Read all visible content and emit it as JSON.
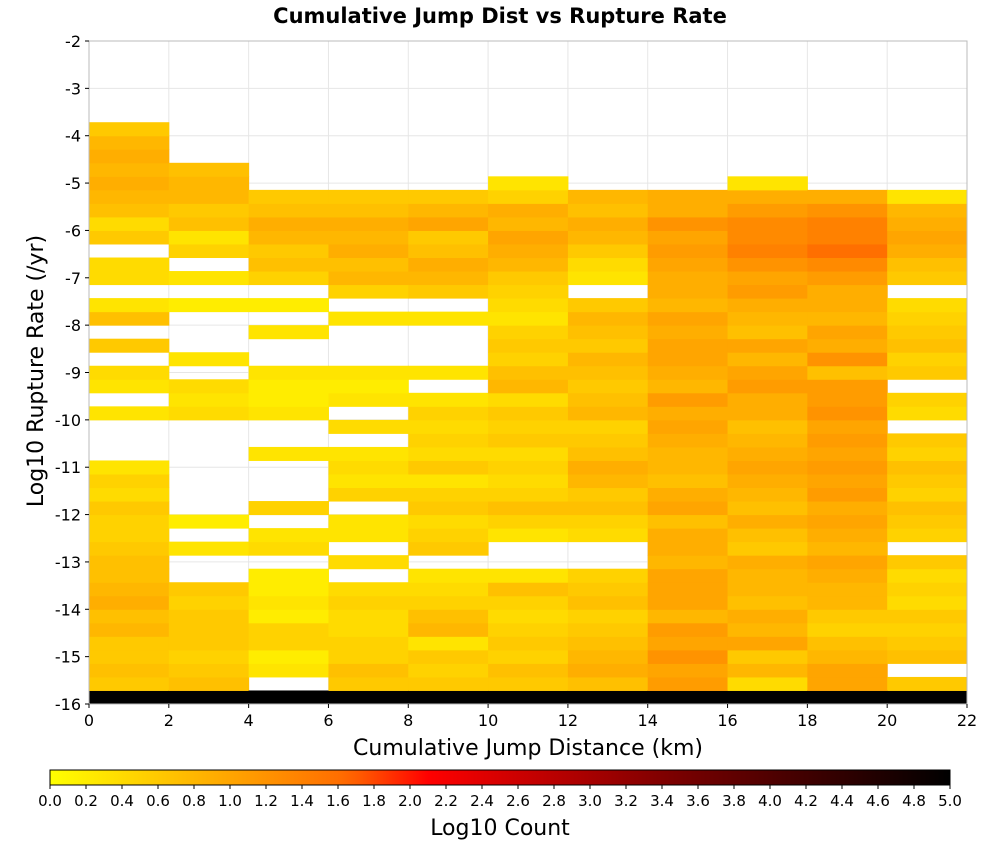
{
  "chart_data": {
    "type": "heatmap",
    "title": "Cumulative Jump Dist vs Rupture Rate",
    "xlabel": "Cumulative Jump Distance (km)",
    "ylabel": "Log10 Rupture Rate (/yr)",
    "xlim": [
      0,
      22
    ],
    "ylim": [
      -16,
      -2
    ],
    "xticks": [
      "0",
      "2",
      "4",
      "6",
      "8",
      "10",
      "12",
      "14",
      "16",
      "18",
      "20",
      "22"
    ],
    "yticks": [
      "-2",
      "-3",
      "-4",
      "-5",
      "-6",
      "-7",
      "-8",
      "-9",
      "-10",
      "-11",
      "-12",
      "-13",
      "-14",
      "-15",
      "-16"
    ],
    "x_bin_width": 2,
    "y_bin_width": 0.2857,
    "colorbar": {
      "label": "Log10 Count",
      "min": 0.0,
      "max": 5.0,
      "ticks": [
        "0.0",
        "0.2",
        "0.4",
        "0.6",
        "0.8",
        "1.0",
        "1.2",
        "1.4",
        "1.6",
        "1.8",
        "2.0",
        "2.2",
        "2.4",
        "2.6",
        "2.8",
        "3.0",
        "3.2",
        "3.4",
        "3.6",
        "3.8",
        "4.0",
        "4.2",
        "4.4",
        "4.6",
        "4.8",
        "5.0"
      ],
      "colors": [
        "#ffff00",
        "#ffa500",
        "#ff6a00",
        "#ff0000",
        "#cc0000",
        "#800000",
        "#000000"
      ]
    },
    "columns": [
      {
        "x": 0,
        "top_bin": 42,
        "values": [
          5.0,
          0.6,
          0.7,
          0.6,
          0.6,
          0.8,
          0.7,
          0.9,
          0.8,
          0.7,
          0.7,
          0.6,
          0.5,
          0.5,
          0.6,
          0.4,
          0.5,
          0.3,
          null,
          null,
          null,
          0.3,
          null,
          0.3,
          0.4,
          null,
          0.6,
          null,
          0.7,
          0.3,
          null,
          0.4,
          0.4,
          null,
          0.6,
          0.4,
          0.7,
          0.8,
          0.9,
          0.8,
          0.9,
          0.8,
          0.6
        ]
      },
      {
        "x": 2,
        "top_bin": 39,
        "values": [
          5.0,
          0.7,
          0.6,
          0.5,
          0.6,
          0.6,
          0.6,
          0.5,
          0.6,
          null,
          null,
          0.3,
          null,
          0.2,
          null,
          null,
          null,
          null,
          null,
          null,
          null,
          0.4,
          0.3,
          0.4,
          null,
          0.3,
          null,
          null,
          null,
          0.2,
          null,
          0.3,
          null,
          0.5,
          0.3,
          0.7,
          0.6,
          0.8,
          0.8,
          0.7
        ]
      },
      {
        "x": 4,
        "top_bin": 38,
        "values": [
          5.0,
          null,
          0.3,
          0.2,
          0.5,
          0.5,
          0.2,
          0.3,
          0.2,
          0.2,
          null,
          0.4,
          0.3,
          null,
          0.5,
          null,
          null,
          null,
          0.3,
          null,
          null,
          0.3,
          0.2,
          0.2,
          0.3,
          null,
          null,
          0.3,
          null,
          0.2,
          null,
          0.5,
          0.7,
          0.6,
          0.8,
          0.9,
          0.7,
          0.6
        ]
      },
      {
        "x": 6,
        "top_bin": 38,
        "values": [
          5.0,
          0.6,
          0.7,
          0.5,
          0.5,
          0.4,
          0.4,
          0.5,
          0.4,
          null,
          0.4,
          null,
          0.3,
          0.3,
          null,
          0.5,
          0.3,
          0.4,
          0.3,
          null,
          0.4,
          null,
          0.3,
          0.2,
          0.3,
          null,
          null,
          null,
          0.3,
          null,
          0.5,
          0.8,
          0.7,
          0.9,
          0.8,
          0.9,
          0.7,
          0.6
        ]
      },
      {
        "x": 8,
        "top_bin": 38,
        "values": [
          5.0,
          0.6,
          0.5,
          0.6,
          0.3,
          0.8,
          0.7,
          0.5,
          0.4,
          0.3,
          null,
          0.6,
          0.5,
          0.4,
          0.6,
          0.5,
          0.3,
          0.6,
          0.4,
          0.5,
          0.4,
          0.5,
          0.3,
          null,
          0.3,
          null,
          null,
          null,
          0.3,
          null,
          0.6,
          0.8,
          0.9,
          0.7,
          0.6,
          1.0,
          0.8,
          0.6
        ]
      },
      {
        "x": 10,
        "top_bin": 39,
        "values": [
          5.0,
          0.6,
          0.7,
          0.5,
          0.6,
          0.5,
          0.4,
          0.5,
          0.7,
          0.3,
          null,
          null,
          0.3,
          0.5,
          0.7,
          0.5,
          0.4,
          0.5,
          0.4,
          0.6,
          0.5,
          0.6,
          0.4,
          0.8,
          0.7,
          0.5,
          0.6,
          0.5,
          0.3,
          0.4,
          0.5,
          0.6,
          0.8,
          0.9,
          1.0,
          0.8,
          0.9,
          0.5,
          0.3
        ]
      },
      {
        "x": 12,
        "top_bin": 38,
        "values": [
          5.0,
          0.7,
          0.9,
          0.8,
          0.7,
          0.6,
          0.5,
          0.7,
          0.6,
          0.5,
          null,
          null,
          0.4,
          0.5,
          0.7,
          0.6,
          0.8,
          0.9,
          0.7,
          0.6,
          0.5,
          0.8,
          0.7,
          0.6,
          0.7,
          0.8,
          0.6,
          0.7,
          0.8,
          0.6,
          null,
          0.3,
          0.4,
          0.6,
          0.8,
          0.9,
          0.7,
          0.8
        ]
      },
      {
        "x": 14,
        "top_bin": 38,
        "values": [
          5.0,
          1.1,
          1.0,
          1.2,
          1.0,
          1.1,
          0.8,
          1.0,
          1.0,
          1.0,
          0.8,
          0.9,
          0.9,
          0.7,
          1.0,
          0.9,
          0.7,
          0.8,
          0.8,
          0.9,
          1.0,
          0.9,
          1.1,
          0.8,
          0.9,
          1.0,
          1.0,
          0.9,
          1.0,
          0.8,
          0.9,
          0.9,
          1.0,
          1.1,
          1.0,
          1.2,
          0.9,
          0.9
        ]
      },
      {
        "x": 16,
        "top_bin": 39,
        "values": [
          5.0,
          0.4,
          0.8,
          0.6,
          1.0,
          0.8,
          0.9,
          0.7,
          0.8,
          0.8,
          0.9,
          0.6,
          0.7,
          0.9,
          0.7,
          0.8,
          0.9,
          1.0,
          0.9,
          0.8,
          0.7,
          0.9,
          0.9,
          1.1,
          1.0,
          0.8,
          1.0,
          0.7,
          0.8,
          0.9,
          1.1,
          1.0,
          1.2,
          1.4,
          1.3,
          1.3,
          1.1,
          0.9,
          0.3
        ]
      },
      {
        "x": 18,
        "top_bin": 38,
        "values": [
          5.0,
          1.0,
          1.0,
          0.8,
          0.7,
          0.5,
          0.6,
          0.8,
          0.8,
          0.9,
          1.0,
          0.8,
          0.9,
          1.0,
          0.9,
          1.1,
          1.0,
          1.1,
          1.0,
          1.1,
          1.0,
          1.2,
          1.1,
          1.1,
          0.7,
          1.2,
          0.9,
          1.0,
          0.8,
          0.9,
          0.9,
          1.1,
          1.3,
          1.6,
          1.4,
          1.4,
          1.2,
          0.9
        ]
      },
      {
        "x": 20,
        "top_bin": 38,
        "values": [
          5.0,
          0.6,
          null,
          0.7,
          0.6,
          0.5,
          0.6,
          0.4,
          0.5,
          0.4,
          0.6,
          null,
          0.5,
          0.6,
          0.7,
          0.5,
          0.6,
          0.7,
          0.5,
          0.6,
          null,
          0.4,
          0.5,
          null,
          0.6,
          0.5,
          0.7,
          0.6,
          0.5,
          0.4,
          null,
          0.6,
          0.7,
          0.9,
          1.0,
          0.9,
          0.8,
          0.3
        ]
      }
    ]
  }
}
